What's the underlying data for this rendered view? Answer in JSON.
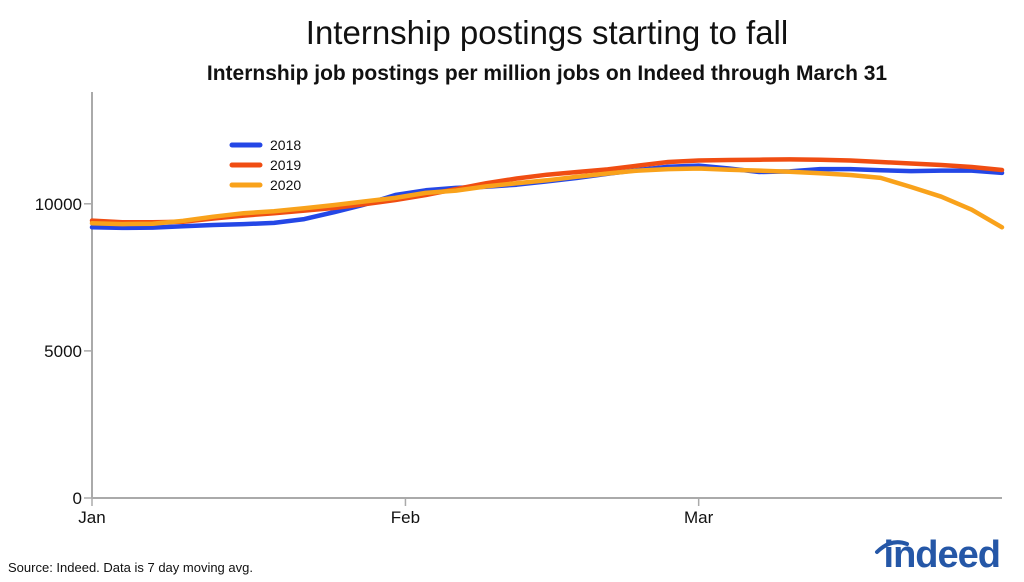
{
  "title": "Internship postings starting to fall",
  "subtitle": "Internship job postings per million jobs on Indeed through March 31",
  "source": "Source: Indeed. Data is 7 day moving avg.",
  "brand": "indeed",
  "colors": {
    "2018": "#2447e6",
    "2019": "#f04d12",
    "2020": "#f9a21b",
    "axis": "#aaaaaa",
    "brand": "#2557a7"
  },
  "chart_data": {
    "type": "line",
    "title": "Internship postings starting to fall",
    "subtitle": "Internship job postings per million jobs on Indeed through March 31",
    "xlabel": "",
    "ylabel": "",
    "x_ticks": [
      "Jan",
      "Feb",
      "Mar"
    ],
    "x_tick_days": [
      1,
      32,
      61
    ],
    "xlim": [
      1,
      91
    ],
    "ylim": [
      0,
      13800
    ],
    "y_ticks": [
      0,
      5000,
      10000
    ],
    "legend_position": "top-left",
    "grid": false,
    "series": [
      {
        "name": "2018",
        "x": [
          1,
          4,
          7,
          10,
          13,
          16,
          19,
          22,
          25,
          28,
          31,
          34,
          37,
          40,
          43,
          46,
          49,
          52,
          55,
          58,
          61,
          64,
          67,
          70,
          73,
          76,
          79,
          82,
          85,
          88,
          91
        ],
        "y": [
          9200,
          9180,
          9190,
          9240,
          9280,
          9310,
          9350,
          9480,
          9720,
          9980,
          10300,
          10460,
          10540,
          10580,
          10650,
          10760,
          10880,
          11020,
          11150,
          11260,
          11300,
          11200,
          11080,
          11100,
          11180,
          11180,
          11140,
          11110,
          11130,
          11130,
          11050
        ]
      },
      {
        "name": "2019",
        "x": [
          1,
          4,
          7,
          10,
          13,
          16,
          19,
          22,
          25,
          28,
          31,
          34,
          37,
          40,
          43,
          46,
          49,
          52,
          55,
          58,
          61,
          64,
          67,
          70,
          73,
          76,
          79,
          82,
          85,
          88,
          91
        ],
        "y": [
          9430,
          9370,
          9370,
          9390,
          9500,
          9600,
          9680,
          9770,
          9860,
          9990,
          10130,
          10300,
          10500,
          10700,
          10860,
          10990,
          11080,
          11170,
          11300,
          11420,
          11470,
          11490,
          11500,
          11510,
          11500,
          11470,
          11420,
          11370,
          11320,
          11250,
          11150
        ]
      },
      {
        "name": "2020",
        "x": [
          1,
          4,
          7,
          10,
          13,
          16,
          19,
          22,
          25,
          28,
          31,
          34,
          37,
          40,
          43,
          46,
          49,
          52,
          55,
          58,
          61,
          64,
          67,
          70,
          73,
          76,
          79,
          82,
          85,
          88,
          91
        ],
        "y": [
          9340,
          9310,
          9320,
          9420,
          9560,
          9680,
          9750,
          9850,
          9960,
          10080,
          10200,
          10370,
          10450,
          10590,
          10700,
          10800,
          10920,
          11030,
          11130,
          11180,
          11200,
          11160,
          11130,
          11090,
          11040,
          10980,
          10880,
          10570,
          10240,
          9800,
          9200
        ]
      }
    ]
  }
}
